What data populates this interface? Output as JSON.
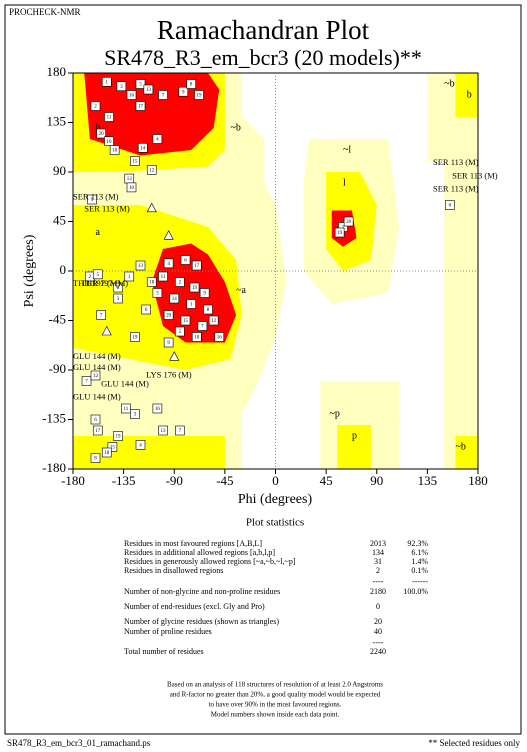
{
  "header": "PROCHECK-NMR",
  "chart_data": {
    "type": "scatter",
    "title": "Ramachandran Plot",
    "subtitle": "SR478_R3_em_bcr3 (20 models)**",
    "x_label": "Phi (degrees)",
    "y_label": "Psi (degrees)",
    "xlim": [
      -180,
      180
    ],
    "ylim": [
      -180,
      180
    ],
    "xticks": [
      -180,
      -135,
      -90,
      -45,
      0,
      45,
      90,
      135,
      180
    ],
    "yticks": [
      -180,
      -135,
      -90,
      -45,
      0,
      45,
      90,
      135,
      180
    ],
    "series": [
      {
        "marker": "square",
        "x": [
          -150,
          -137,
          -128,
          -120,
          -113,
          -100,
          -82,
          -75,
          -68,
          -160,
          -148,
          -120,
          -155,
          -148,
          -143,
          -118,
          -125,
          -105,
          -130,
          -128,
          -110,
          -95,
          -80,
          -70,
          -100,
          -85,
          -72,
          -63,
          -90,
          -75,
          -60,
          -105,
          -95,
          -80,
          -65,
          -55,
          -85,
          -70,
          -50,
          -110,
          -120,
          -130,
          -140,
          -115,
          -155,
          -125,
          -95,
          -140,
          60,
          57,
          65,
          155,
          -163,
          -165,
          -158,
          -168,
          -160,
          -160,
          -133,
          -125,
          -105,
          -85,
          -100,
          -140,
          -145,
          -120,
          -158,
          -160,
          -150
        ],
        "y": [
          172,
          168,
          160,
          170,
          165,
          160,
          163,
          170,
          160,
          150,
          140,
          150,
          125,
          118,
          110,
          112,
          100,
          120,
          84,
          76,
          92,
          7,
          10,
          5,
          -5,
          -10,
          -15,
          -20,
          -25,
          -30,
          -35,
          -20,
          -40,
          -45,
          -50,
          -45,
          -55,
          -60,
          -60,
          -10,
          5,
          -5,
          -15,
          -35,
          -40,
          -60,
          -65,
          -25,
          40,
          35,
          45,
          60,
          65,
          -5,
          -3,
          -100,
          -95,
          -135,
          -125,
          -130,
          -125,
          -145,
          -145,
          -150,
          -160,
          -158,
          -145,
          -170,
          -165
        ],
        "labels": [
          "1",
          "3",
          "16",
          "5",
          "13",
          "7",
          "9",
          "8",
          "19",
          "2",
          "11",
          "17",
          "20",
          "10",
          "18",
          "14",
          "15",
          "4",
          "13",
          "10",
          "12",
          "4",
          "6",
          "17",
          "11",
          "2",
          "19",
          "9",
          "14",
          "1",
          "8",
          "3",
          "20",
          "15",
          "7",
          "12",
          "5",
          "10",
          "16",
          "18",
          "13",
          "1",
          "8",
          "6",
          "7",
          "19",
          "9",
          "3",
          "1",
          "19",
          "20",
          "6",
          "9",
          "2",
          "5",
          "7",
          "12",
          "6",
          "11",
          "3",
          "16",
          "7",
          "13",
          "19",
          "15",
          "4",
          "17",
          "8",
          "18"
        ]
      },
      {
        "marker": "triangle",
        "x": [
          -110,
          -95,
          -90,
          -150
        ],
        "y": [
          57,
          32,
          -78,
          -55
        ]
      }
    ],
    "region_labels": [
      {
        "text": "b",
        "x": -160,
        "y": 130
      },
      {
        "text": "~b",
        "x": -40,
        "y": 130
      },
      {
        "text": "a",
        "x": -160,
        "y": 35
      },
      {
        "text": "~a",
        "x": -35,
        "y": -18
      },
      {
        "text": "~l",
        "x": 60,
        "y": 110
      },
      {
        "text": "l",
        "x": 60,
        "y": 80
      },
      {
        "text": "~p",
        "x": 48,
        "y": -130
      },
      {
        "text": "p",
        "x": 68,
        "y": -150
      },
      {
        "text": "~b",
        "x": 150,
        "y": 170
      },
      {
        "text": "b",
        "x": 170,
        "y": 160
      },
      {
        "text": "~b",
        "x": 160,
        "y": -160
      }
    ],
    "annotations": [
      {
        "text": "SER 113 (M)",
        "x": 140,
        "y": 98
      },
      {
        "text": "SER 113 (M)",
        "x": 157,
        "y": 86
      },
      {
        "text": "SER 113 (M)",
        "x": 140,
        "y": 74
      },
      {
        "text": "SER 113 (M)",
        "x": -180,
        "y": 67
      },
      {
        "text": "SER 113 (M)",
        "x": -170,
        "y": 56
      },
      {
        "text": "THR 197 (M)",
        "x": -180,
        "y": -12
      },
      {
        "text": "THR 197 (M)",
        "x": -173,
        "y": -12
      },
      {
        "text": "GLU 144 (M)",
        "x": -180,
        "y": -78
      },
      {
        "text": "GLU 144 (M)",
        "x": -180,
        "y": -88
      },
      {
        "text": "LYS 176 (M)",
        "x": -115,
        "y": -95
      },
      {
        "text": "GLU 144 (M)",
        "x": -155,
        "y": -103
      },
      {
        "text": "GLU 144 (M)",
        "x": -180,
        "y": -115
      }
    ]
  },
  "statistics": {
    "title": "Plot statistics",
    "rows": [
      [
        "Residues in most favoured regions  [A,B,L]",
        "2013",
        "92.3%"
      ],
      [
        "Residues in additional allowed regions  [a,b,l,p]",
        "134",
        "6.1%"
      ],
      [
        "Residues in generously allowed regions  [~a,~b,~l,~p]",
        "31",
        "1.4%"
      ],
      [
        "Residues in disallowed regions",
        "2",
        "0.1%"
      ],
      [
        "",
        "----",
        "------"
      ],
      [
        "Number of non-glycine and non-proline residues",
        "2180",
        "100.0%"
      ],
      [
        "Number of end-residues (excl. Gly and Pro)",
        "0",
        ""
      ],
      [
        "Number of glycine residues (shown as triangles)",
        "20",
        ""
      ],
      [
        "Number of proline residues",
        "40",
        ""
      ],
      [
        "",
        "----",
        ""
      ],
      [
        "Total number of residues",
        "2240",
        ""
      ]
    ],
    "note": [
      "Based on an analysis of 118 structures of resolution of at least 2.0 Angstroms",
      "and R-factor no greater than 20%, a good quality model would be expected",
      "to have over 90% in the most favoured regions.",
      "Model numbers shown inside each data point."
    ]
  },
  "footer_left": "SR478_R3_em_bcr3_01_ramachand.ps",
  "footer_right": "** Selected residues only"
}
